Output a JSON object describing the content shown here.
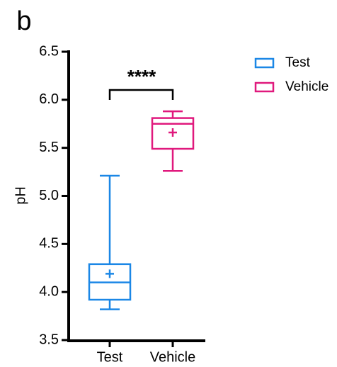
{
  "chart_data": {
    "type": "box",
    "panel_label": "b",
    "y_label": "pH",
    "categories": [
      "Test",
      "Vehicle"
    ],
    "series": [
      {
        "name": "Test",
        "color": "#1b87e6",
        "min": 3.82,
        "q1": 3.92,
        "median": 4.1,
        "q3": 4.29,
        "max": 5.21,
        "mean": 4.19
      },
      {
        "name": "Vehicle",
        "color": "#e0197d",
        "min": 5.26,
        "q1": 5.49,
        "median": 5.75,
        "q3": 5.81,
        "max": 5.88,
        "mean": 5.66
      }
    ],
    "ylim": [
      3.5,
      6.5
    ],
    "yticks": [
      3.5,
      {
        "value": 4,
        "label": "4.0"
      },
      4.5,
      {
        "value": 5,
        "label": "5.0"
      },
      5.5,
      {
        "value": 6,
        "label": "6.0"
      },
      6.5
    ],
    "annotation": "****",
    "legend": "upper right"
  }
}
